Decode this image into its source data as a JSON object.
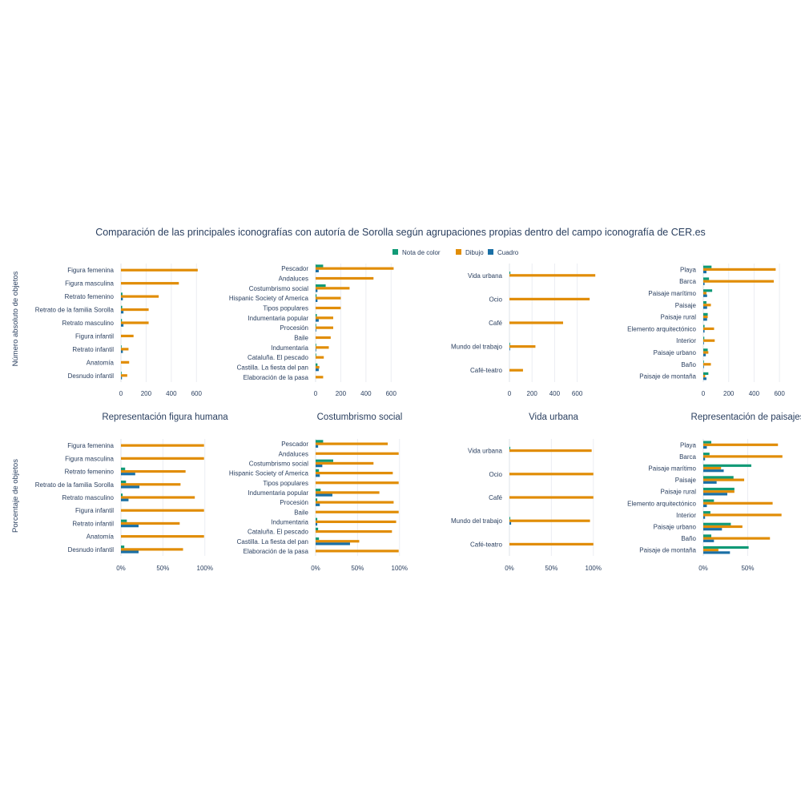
{
  "title": "Comparación de las principales iconografías con autoría de Sorolla según agrupaciones propias dentro del campo iconografía de CER.es",
  "colors": {
    "Nota de color": "#109a76",
    "Dibujo": "#e18d06",
    "Cuadro": "#1a6fa5"
  },
  "legend": [
    "Nota de color",
    "Dibujo",
    "Cuadro"
  ],
  "row_titles": [
    "Número absoluto de objetos",
    "Porcentaje de objetos"
  ],
  "chart_data": [
    {
      "type": "bar",
      "orientation": "horizontal",
      "panel": "Representación figura humana",
      "measure": "absolute",
      "title": "",
      "categories": [
        "Figura femenina",
        "Figura masculina",
        "Retrato femenino",
        "Retrato de la familia Sorolla",
        "Retrato masculino",
        "Figura infantil",
        "Retrato infantil",
        "Anatomía",
        "Desnudo infantil"
      ],
      "series": [
        {
          "name": "Nota de color",
          "values": [
            0,
            0,
            12,
            10,
            8,
            0,
            5,
            0,
            3
          ]
        },
        {
          "name": "Dibujo",
          "values": [
            610,
            460,
            300,
            220,
            220,
            100,
            60,
            65,
            50
          ]
        },
        {
          "name": "Cuadro",
          "values": [
            0,
            0,
            15,
            20,
            20,
            0,
            15,
            0,
            8
          ]
        }
      ],
      "xlim": [
        0,
        700
      ],
      "xticks": [
        0,
        200,
        400,
        600
      ],
      "xtick_labels": [
        "0",
        "200",
        "400",
        "600"
      ]
    },
    {
      "type": "bar",
      "orientation": "horizontal",
      "panel": "Costumbrismo social",
      "measure": "absolute",
      "title": "",
      "categories": [
        "Pescador",
        "Andaluces",
        "Costumbrismo social",
        "Hispanic Society of America",
        "Tipos populares",
        "Indumentaria popular",
        "Procesión",
        "Baile",
        "Indumentaria",
        "Cataluña. El pescado",
        "Castilla. La fiesta del pan",
        "Elaboración de la pasa"
      ],
      "series": [
        {
          "name": "Nota de color",
          "values": [
            60,
            0,
            80,
            8,
            0,
            10,
            5,
            0,
            5,
            3,
            15,
            0
          ]
        },
        {
          "name": "Dibujo",
          "values": [
            620,
            460,
            270,
            200,
            200,
            140,
            140,
            120,
            105,
            65,
            30,
            60
          ]
        },
        {
          "name": "Cuadro",
          "values": [
            25,
            0,
            15,
            15,
            0,
            25,
            5,
            0,
            2,
            0,
            25,
            0
          ]
        }
      ],
      "xlim": [
        0,
        700
      ],
      "xticks": [
        0,
        200,
        400,
        600
      ],
      "xtick_labels": [
        "0",
        "200",
        "400",
        "600"
      ]
    },
    {
      "type": "bar",
      "orientation": "horizontal",
      "panel": "Vida urbana",
      "measure": "absolute",
      "title": "",
      "categories": [
        "Vida urbana",
        "Ocio",
        "Café",
        "Mundo del trabajo",
        "Café-teatro"
      ],
      "series": [
        {
          "name": "Nota de color",
          "values": [
            8,
            0,
            0,
            3,
            0
          ]
        },
        {
          "name": "Dibujo",
          "values": [
            760,
            710,
            475,
            230,
            120
          ]
        },
        {
          "name": "Cuadro",
          "values": [
            0,
            0,
            0,
            3,
            0
          ]
        }
      ],
      "xlim": [
        0,
        780
      ],
      "xticks": [
        0,
        200,
        400,
        600
      ],
      "xtick_labels": [
        "0",
        "200",
        "400",
        "600"
      ]
    },
    {
      "type": "bar",
      "orientation": "horizontal",
      "panel": "Representación de paisajes",
      "measure": "absolute",
      "title": "",
      "categories": [
        "Playa",
        "Barca",
        "Paisaje marítimo",
        "Paisaje",
        "Paisaje rural",
        "Elemento arquitectónico",
        "Interior",
        "Paisaje urbano",
        "Baño",
        "Paisaje de montaña"
      ],
      "series": [
        {
          "name": "Nota de color",
          "values": [
            65,
            45,
            70,
            25,
            35,
            10,
            8,
            35,
            5,
            40
          ]
        },
        {
          "name": "Dibujo",
          "values": [
            570,
            555,
            25,
            60,
            35,
            85,
            90,
            40,
            60,
            15
          ]
        },
        {
          "name": "Cuadro",
          "values": [
            25,
            10,
            30,
            30,
            30,
            10,
            3,
            20,
            5,
            25
          ]
        }
      ],
      "xlim": [
        0,
        700
      ],
      "xticks": [
        0,
        200,
        400,
        600
      ],
      "xtick_labels": [
        "0",
        "200",
        "400",
        "600"
      ]
    },
    {
      "type": "bar",
      "orientation": "horizontal",
      "panel": "Representación figura humana",
      "measure": "percent",
      "title": "Representación figura humana",
      "categories": [
        "Figura femenina",
        "Figura masculina",
        "Retrato femenino",
        "Retrato de la familia Sorolla",
        "Retrato masculino",
        "Figura infantil",
        "Retrato infantil",
        "Anatomía",
        "Desnudo infantil"
      ],
      "series": [
        {
          "name": "Nota de color",
          "values": [
            0,
            0,
            0.05,
            0.06,
            0.02,
            0,
            0.07,
            0,
            0.04
          ]
        },
        {
          "name": "Dibujo",
          "values": [
            0.99,
            0.99,
            0.77,
            0.71,
            0.88,
            0.99,
            0.7,
            0.99,
            0.74
          ]
        },
        {
          "name": "Cuadro",
          "values": [
            0,
            0,
            0.17,
            0.22,
            0.09,
            0,
            0.21,
            0,
            0.21
          ]
        }
      ],
      "xlim": [
        0,
        1.05
      ],
      "xticks": [
        0,
        0.5,
        1
      ],
      "xtick_labels": [
        "0%",
        "50%",
        "100%"
      ]
    },
    {
      "type": "bar",
      "orientation": "horizontal",
      "panel": "Costumbrismo social",
      "measure": "percent",
      "title": "Costumbrismo social",
      "categories": [
        "Pescador",
        "Andaluces",
        "Costumbrismo social",
        "Hispanic Society of America",
        "Tipos populares",
        "Indumentaria popular",
        "Procesión",
        "Baile",
        "Indumentaria",
        "Cataluña. El pescado",
        "Castilla. La fiesta del pan",
        "Elaboración de la pasa"
      ],
      "series": [
        {
          "name": "Nota de color",
          "values": [
            0.09,
            0,
            0.21,
            0.04,
            0,
            0.06,
            0.02,
            0,
            0.02,
            0.03,
            0.04,
            0
          ]
        },
        {
          "name": "Dibujo",
          "values": [
            0.86,
            0.99,
            0.69,
            0.92,
            0.99,
            0.76,
            0.93,
            0.99,
            0.96,
            0.91,
            0.52,
            0.99
          ]
        },
        {
          "name": "Cuadro",
          "values": [
            0.03,
            0,
            0.08,
            0.05,
            0,
            0.2,
            0.05,
            0,
            0.02,
            0,
            0.41,
            0
          ]
        }
      ],
      "xlim": [
        0,
        1.05
      ],
      "xticks": [
        0,
        0.5,
        1
      ],
      "xtick_labels": [
        "0%",
        "50%",
        "100%"
      ]
    },
    {
      "type": "bar",
      "orientation": "horizontal",
      "panel": "Vida urbana",
      "measure": "percent",
      "title": "Vida urbana",
      "categories": [
        "Vida urbana",
        "Ocio",
        "Café",
        "Mundo del trabajo",
        "Café-teatro"
      ],
      "series": [
        {
          "name": "Nota de color",
          "values": [
            0.01,
            0,
            0,
            0.01,
            0
          ]
        },
        {
          "name": "Dibujo",
          "values": [
            0.98,
            1.0,
            1.0,
            0.96,
            1.0
          ]
        },
        {
          "name": "Cuadro",
          "values": [
            0,
            0,
            0,
            0.02,
            0
          ]
        }
      ],
      "xlim": [
        0,
        1.05
      ],
      "xticks": [
        0,
        0.5,
        1
      ],
      "xtick_labels": [
        "0%",
        "50%",
        "100%"
      ]
    },
    {
      "type": "bar",
      "orientation": "horizontal",
      "panel": "Representación de paisajes",
      "measure": "percent",
      "title": "Representación de paisajes",
      "categories": [
        "Playa",
        "Barca",
        "Paisaje marítimo",
        "Paisaje",
        "Paisaje rural",
        "Elemento arquitectónico",
        "Interior",
        "Paisaje urbano",
        "Baño",
        "Paisaje de montaña"
      ],
      "series": [
        {
          "name": "Nota de color",
          "values": [
            0.09,
            0.07,
            0.54,
            0.34,
            0.35,
            0.12,
            0.08,
            0.31,
            0.09,
            0.51
          ]
        },
        {
          "name": "Dibujo",
          "values": [
            0.84,
            0.89,
            0.2,
            0.46,
            0.35,
            0.78,
            0.88,
            0.44,
            0.75,
            0.17
          ]
        },
        {
          "name": "Cuadro",
          "values": [
            0.04,
            0.02,
            0.23,
            0.15,
            0.27,
            0.04,
            0.02,
            0.21,
            0.12,
            0.3
          ]
        }
      ],
      "xlim": [
        0,
        1.0
      ],
      "xticks": [
        0,
        0.5
      ],
      "xtick_labels": [
        "0%",
        "50%"
      ]
    }
  ]
}
